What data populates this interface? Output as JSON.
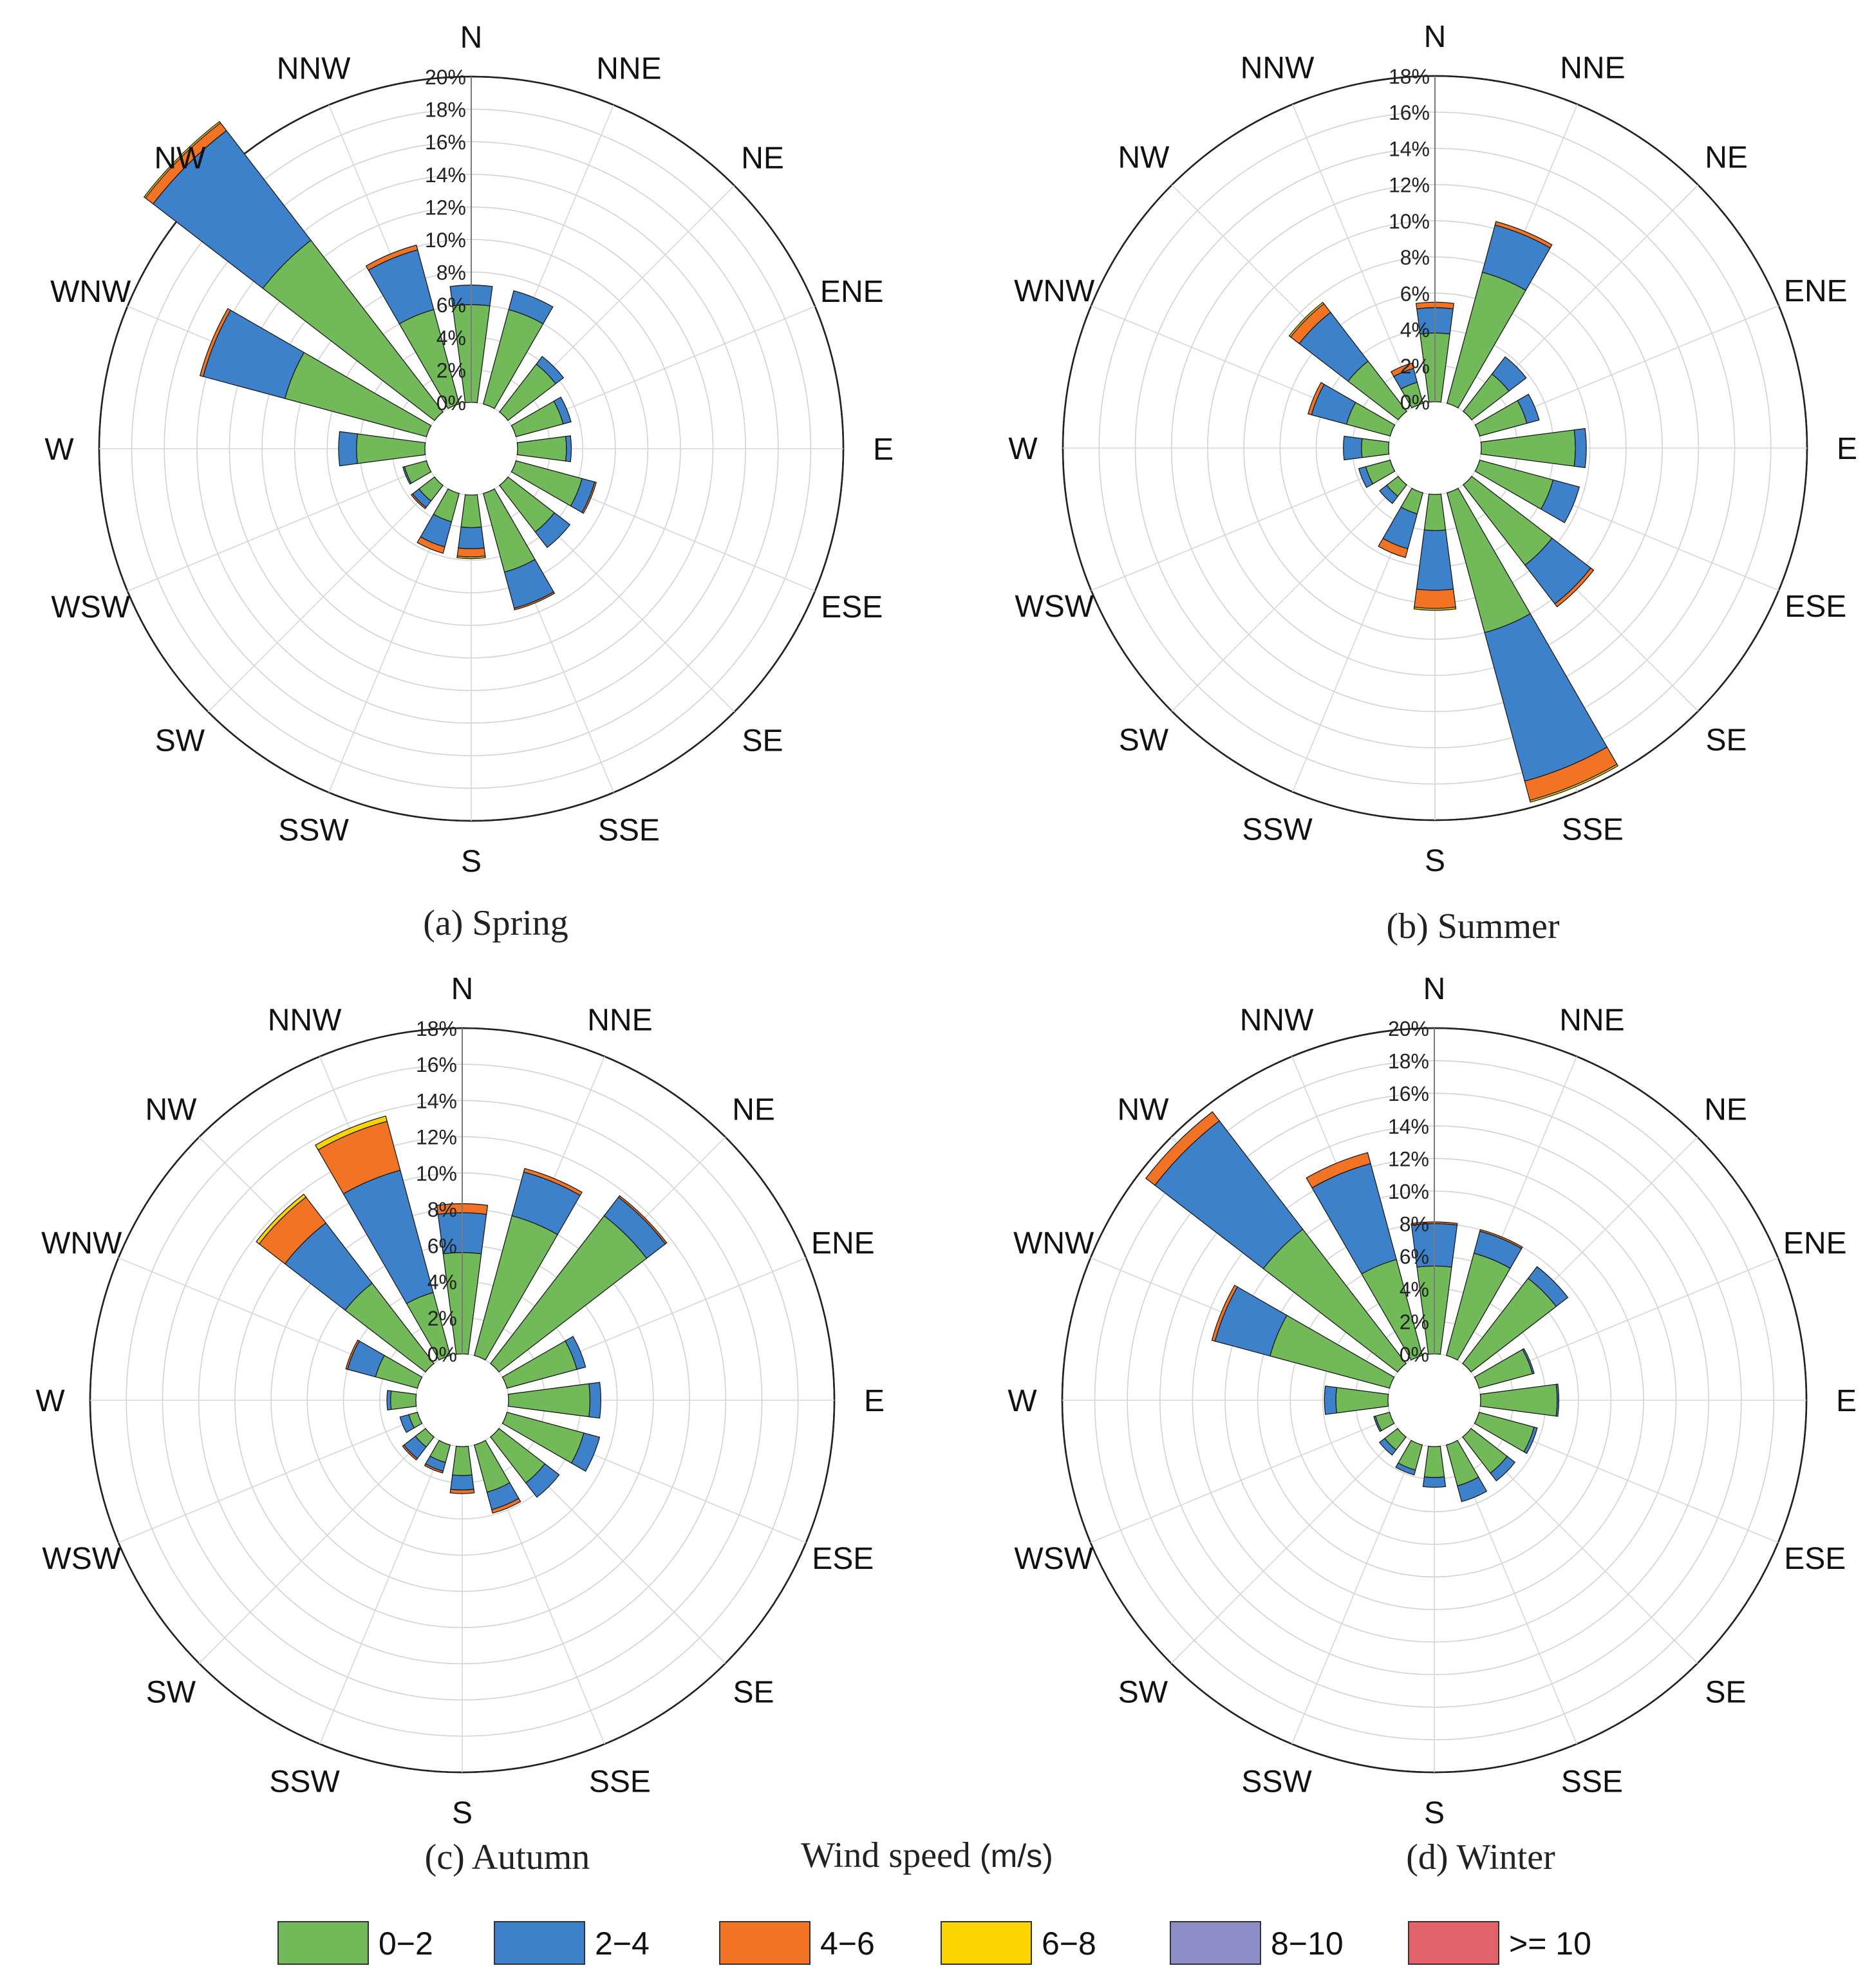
{
  "figure": {
    "speed_bins": [
      "0−2",
      "2−4",
      "4−6",
      "6−8",
      "8−10",
      ">= 10"
    ],
    "bin_colors": [
      "#72b95a",
      "#3c81c9",
      "#f27323",
      "#fbd400",
      "#8d8ec9",
      "#e2646a"
    ],
    "legend_title": "Wind speed",
    "legend_unit": "(m/s)"
  },
  "chart_data": [
    {
      "type": "wind-rose",
      "title": "Spring",
      "panel_tag": "(a)",
      "directions": [
        "N",
        "NNE",
        "NE",
        "ENE",
        "E",
        "ESE",
        "SE",
        "SSE",
        "S",
        "SSW",
        "SW",
        "WSW",
        "W",
        "WNW",
        "NW",
        "NNW"
      ],
      "radial_ticks": [
        "0%",
        "2%",
        "4%",
        "6%",
        "8%",
        "10%",
        "12%",
        "14%",
        "16%",
        "18%",
        "20%"
      ],
      "rmax": 20,
      "series": [
        {
          "name": "0−2",
          "values": [
            6.0,
            6.0,
            3.7,
            3.0,
            3.0,
            4.2,
            3.6,
            5.0,
            2.0,
            1.8,
            1.2,
            1.4,
            4.2,
            9.0,
            13.3,
            6.0
          ]
        },
        {
          "name": "2−4",
          "values": [
            1.2,
            1.2,
            0.6,
            0.5,
            0.3,
            0.8,
            1.2,
            2.3,
            1.3,
            1.6,
            0.5,
            0.1,
            1.1,
            5.2,
            8.5,
            3.8
          ]
        },
        {
          "name": "4−6",
          "values": [
            0.0,
            0.0,
            0.0,
            0.0,
            0.0,
            0.1,
            0.0,
            0.1,
            0.5,
            0.4,
            0.1,
            0.0,
            0.0,
            0.2,
            0.6,
            0.3
          ]
        },
        {
          "name": "6−8",
          "values": [
            0.0,
            0.0,
            0.0,
            0.0,
            0.0,
            0.0,
            0.0,
            0.0,
            0.1,
            0.0,
            0.0,
            0.0,
            0.0,
            0.0,
            0.1,
            0.0
          ]
        },
        {
          "name": "8−10",
          "values": [
            0,
            0,
            0,
            0,
            0,
            0,
            0,
            0,
            0,
            0,
            0,
            0,
            0,
            0,
            0,
            0
          ]
        },
        {
          "name": ">= 10",
          "values": [
            0,
            0,
            0,
            0,
            0,
            0,
            0,
            0,
            0,
            0,
            0,
            0,
            0,
            0,
            0,
            0
          ]
        }
      ]
    },
    {
      "type": "wind-rose",
      "title": "Summer",
      "panel_tag": "(b)",
      "directions": [
        "N",
        "NNE",
        "NE",
        "ENE",
        "E",
        "ESE",
        "SE",
        "SSE",
        "S",
        "SSW",
        "SW",
        "WSW",
        "W",
        "WNW",
        "NW",
        "NNW"
      ],
      "radial_ticks": [
        "0%",
        "2%",
        "4%",
        "6%",
        "8%",
        "10%",
        "12%",
        "14%",
        "16%",
        "18%"
      ],
      "rmax": 18,
      "series": [
        {
          "name": "0−2",
          "values": [
            3.8,
            7.5,
            2.6,
            2.7,
            5.2,
            4.2,
            5.6,
            8.0,
            2.0,
            1.2,
            0.8,
            1.4,
            1.5,
            2.5,
            3.5,
            1.2
          ]
        },
        {
          "name": "2−4",
          "values": [
            1.4,
            2.7,
            1.2,
            0.7,
            0.6,
            1.5,
            2.7,
            8.5,
            3.3,
            2.0,
            0.5,
            0.4,
            1.0,
            2.0,
            3.4,
            0.8
          ]
        },
        {
          "name": "4−6",
          "values": [
            0.3,
            0.2,
            0.0,
            0.0,
            0.0,
            0.0,
            0.2,
            1.1,
            1.0,
            0.5,
            0.0,
            0.0,
            0.0,
            0.2,
            0.6,
            0.3
          ]
        },
        {
          "name": "6−8",
          "values": [
            0.0,
            0.0,
            0.0,
            0.0,
            0.0,
            0.0,
            0.0,
            0.1,
            0.1,
            0.0,
            0.0,
            0.0,
            0.0,
            0.0,
            0.1,
            0.0
          ]
        },
        {
          "name": "8−10",
          "values": [
            0,
            0,
            0,
            0,
            0,
            0,
            0,
            0,
            0,
            0,
            0,
            0,
            0,
            0,
            0,
            0
          ]
        },
        {
          "name": ">= 10",
          "values": [
            0,
            0,
            0,
            0,
            0,
            0,
            0,
            0,
            0,
            0,
            0,
            0,
            0,
            0,
            0,
            0
          ]
        }
      ]
    },
    {
      "type": "wind-rose",
      "title": "Autumn",
      "panel_tag": "(c)",
      "directions": [
        "N",
        "NNE",
        "NE",
        "ENE",
        "E",
        "ESE",
        "SE",
        "SSE",
        "S",
        "SSW",
        "SW",
        "WSW",
        "W",
        "WNW",
        "NW",
        "NNW"
      ],
      "radial_ticks": [
        "0%",
        "2%",
        "4%",
        "6%",
        "8%",
        "10%",
        "12%",
        "14%",
        "16%",
        "18%"
      ],
      "rmax": 18,
      "series": [
        {
          "name": "0−2",
          "values": [
            5.6,
            8.0,
            10.3,
            4.0,
            4.5,
            4.4,
            3.2,
            2.7,
            1.6,
            1.0,
            0.7,
            0.5,
            1.4,
            2.4,
            5.6,
            3.6
          ]
        },
        {
          "name": "2−4",
          "values": [
            2.2,
            2.5,
            1.3,
            0.5,
            0.6,
            0.9,
            1.0,
            1.0,
            0.8,
            0.5,
            0.8,
            0.5,
            0.2,
            1.6,
            4.2,
            7.0
          ]
        },
        {
          "name": "4−6",
          "values": [
            0.5,
            0.2,
            0.1,
            0.0,
            0.0,
            0.0,
            0.0,
            0.2,
            0.2,
            0.1,
            0.1,
            0.0,
            0.0,
            0.1,
            1.8,
            2.8
          ]
        },
        {
          "name": "6−8",
          "values": [
            0.0,
            0.0,
            0.0,
            0.0,
            0.0,
            0.0,
            0.0,
            0.0,
            0.0,
            0.0,
            0.0,
            0.0,
            0.0,
            0.0,
            0.2,
            0.3
          ]
        },
        {
          "name": "8−10",
          "values": [
            0,
            0,
            0,
            0,
            0,
            0,
            0,
            0,
            0,
            0,
            0,
            0,
            0,
            0,
            0,
            0
          ]
        },
        {
          "name": ">= 10",
          "values": [
            0,
            0,
            0,
            0,
            0,
            0,
            0,
            0,
            0,
            0,
            0,
            0,
            0,
            0,
            0,
            0
          ]
        }
      ]
    },
    {
      "type": "wind-rose",
      "title": "Winter",
      "panel_tag": "(d)",
      "directions": [
        "N",
        "NNE",
        "NE",
        "ENE",
        "E",
        "ESE",
        "SE",
        "SSE",
        "S",
        "SSW",
        "SW",
        "WSW",
        "W",
        "WNW",
        "NW",
        "NNW"
      ],
      "radial_ticks": [
        "0%",
        "2%",
        "4%",
        "6%",
        "8%",
        "10%",
        "12%",
        "14%",
        "16%",
        "18%",
        "20%"
      ],
      "rmax": 20,
      "series": [
        {
          "name": "0−2",
          "values": [
            5.4,
            6.5,
            6.6,
            3.4,
            4.7,
            3.5,
            2.8,
            2.6,
            1.9,
            1.6,
            1.0,
            0.9,
            3.2,
            7.6,
            10.4,
            6.1
          ]
        },
        {
          "name": "2−4",
          "values": [
            2.6,
            1.4,
            0.9,
            0.1,
            0.1,
            0.2,
            0.6,
            1.0,
            0.6,
            0.3,
            0.4,
            0.1,
            0.7,
            3.5,
            8.4,
            6.1
          ]
        },
        {
          "name": "4−6",
          "values": [
            0.1,
            0.1,
            0.0,
            0.0,
            0.0,
            0.0,
            0.0,
            0.0,
            0.0,
            0.0,
            0.0,
            0.0,
            0.0,
            0.2,
            0.7,
            0.7
          ]
        },
        {
          "name": "6−8",
          "values": [
            0,
            0,
            0,
            0,
            0,
            0,
            0,
            0,
            0,
            0,
            0,
            0,
            0,
            0,
            0,
            0
          ]
        },
        {
          "name": "8−10",
          "values": [
            0,
            0,
            0,
            0,
            0,
            0,
            0,
            0,
            0,
            0,
            0,
            0,
            0,
            0,
            0,
            0
          ]
        },
        {
          "name": ">= 10",
          "values": [
            0,
            0,
            0,
            0,
            0,
            0,
            0,
            0,
            0,
            0,
            0,
            0,
            0,
            0,
            0,
            0
          ]
        }
      ]
    }
  ]
}
